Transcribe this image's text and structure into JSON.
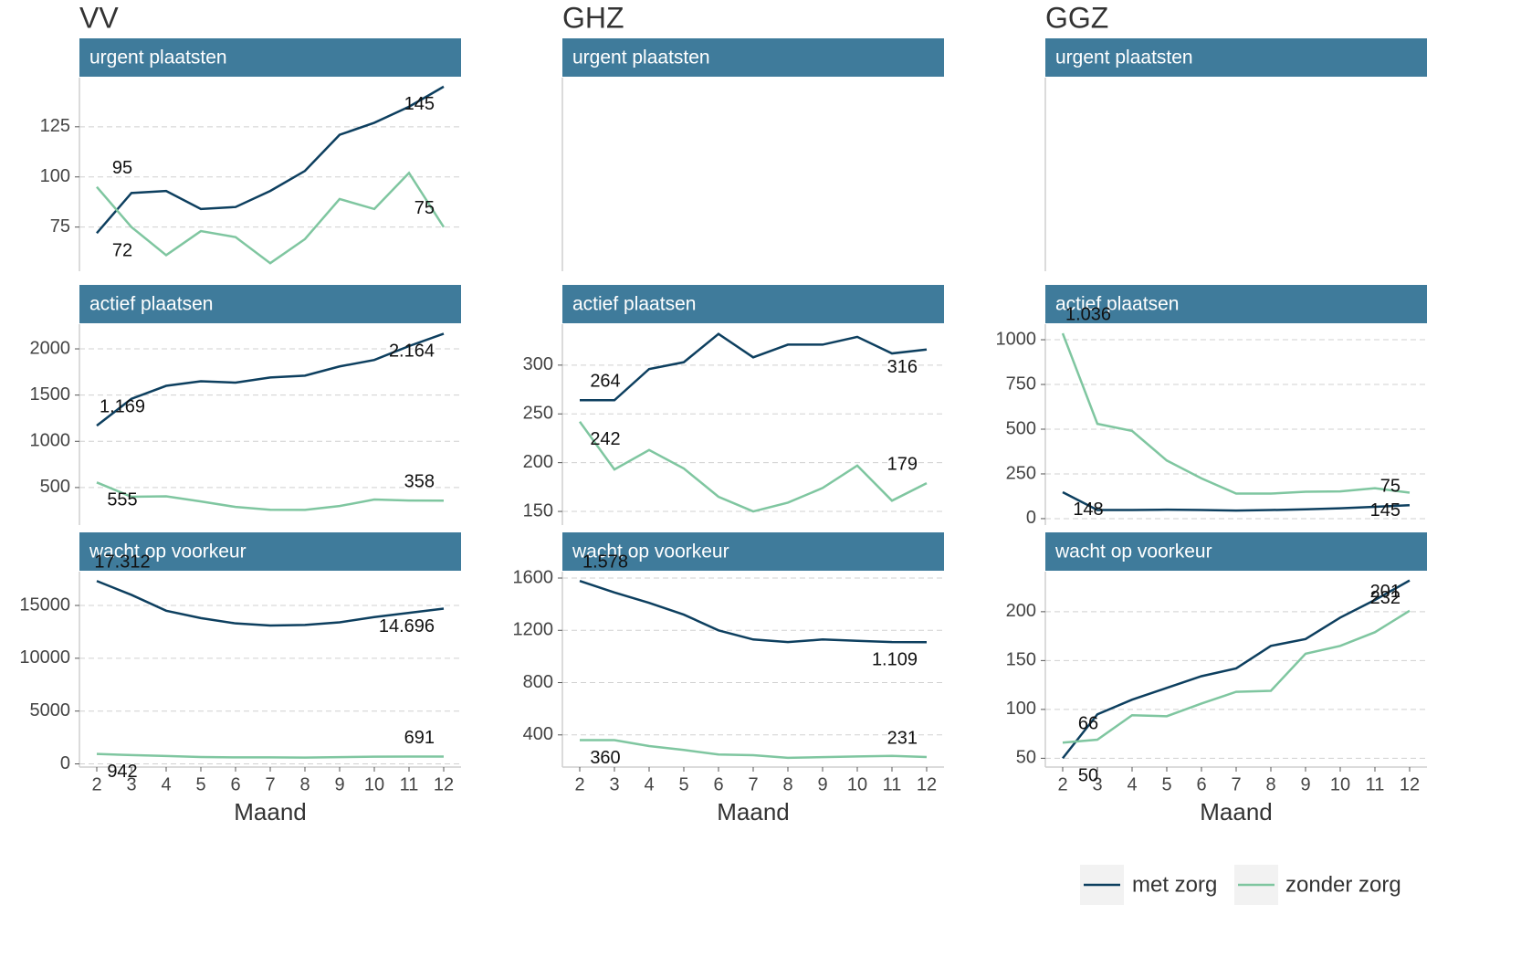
{
  "chart_data": [
    {
      "type": "line",
      "title": "VV",
      "subtitle": "urgent plaatsten",
      "x": [
        2,
        3,
        4,
        5,
        6,
        7,
        8,
        9,
        10,
        11,
        12
      ],
      "xlim": [
        1.5,
        12.5
      ],
      "ylim": [
        53,
        149.5
      ],
      "yticks": [
        75,
        100,
        125
      ],
      "grid": true,
      "series": [
        {
          "name": "met zorg",
          "color": "#0d3f5f",
          "values": [
            72,
            92,
            93,
            84,
            85,
            93,
            103,
            121,
            127,
            135,
            145
          ],
          "value_labels": [
            "72",
            null,
            null,
            null,
            null,
            null,
            null,
            null,
            null,
            null,
            "145"
          ]
        },
        {
          "name": "zonder zorg",
          "color": "#7fc6a0",
          "values": [
            95,
            75,
            61,
            73,
            70,
            57,
            69,
            89,
            84,
            102,
            75
          ],
          "value_labels": [
            "95",
            null,
            null,
            null,
            null,
            null,
            null,
            null,
            null,
            null,
            "75"
          ]
        }
      ]
    },
    {
      "type": "line",
      "subtitle": "actief plaatsen",
      "x": [
        2,
        3,
        4,
        5,
        6,
        7,
        8,
        9,
        10,
        11,
        12
      ],
      "xlim": [
        1.5,
        12.5
      ],
      "ylim": [
        94,
        2267
      ],
      "yticks": [
        500,
        1000,
        1500,
        2000
      ],
      "grid": true,
      "series": [
        {
          "color": "#0d3f5f",
          "values": [
            1169,
            1460,
            1600,
            1650,
            1635,
            1690,
            1710,
            1810,
            1880,
            2030,
            2164
          ],
          "value_labels": [
            "1.169",
            null,
            null,
            null,
            null,
            null,
            null,
            null,
            null,
            null,
            "2.164"
          ]
        },
        {
          "color": "#7fc6a0",
          "values": [
            555,
            400,
            405,
            350,
            290,
            260,
            258,
            300,
            370,
            360,
            358
          ],
          "value_labels": [
            "555",
            null,
            null,
            null,
            null,
            null,
            null,
            null,
            null,
            null,
            "358"
          ]
        }
      ]
    },
    {
      "type": "line",
      "subtitle": "wacht op voorkeur",
      "xlabel": "Maand",
      "x": [
        2,
        3,
        4,
        5,
        6,
        7,
        8,
        9,
        10,
        11,
        12
      ],
      "xlim": [
        1.5,
        12.5
      ],
      "xticks": [
        2,
        3,
        4,
        5,
        6,
        7,
        8,
        9,
        10,
        11,
        12
      ],
      "ylim": [
        -300,
        18200
      ],
      "yticks": [
        0,
        5000,
        10000,
        15000
      ],
      "grid": true,
      "series": [
        {
          "color": "#0d3f5f",
          "values": [
            17312,
            16000,
            14500,
            13800,
            13300,
            13100,
            13150,
            13400,
            13900,
            14300,
            14696
          ],
          "value_labels": [
            "17.312",
            null,
            null,
            null,
            null,
            null,
            null,
            null,
            null,
            null,
            "14.696"
          ]
        },
        {
          "color": "#7fc6a0",
          "values": [
            942,
            830,
            750,
            650,
            620,
            620,
            600,
            640,
            680,
            690,
            691
          ],
          "value_labels": [
            "942",
            null,
            null,
            null,
            null,
            null,
            null,
            null,
            null,
            null,
            "691"
          ]
        }
      ]
    },
    {
      "type": "line",
      "title": "GHZ",
      "subtitle": "urgent plaatsten"
    },
    {
      "type": "line",
      "subtitle": "actief plaatsen",
      "x": [
        2,
        3,
        4,
        5,
        6,
        7,
        8,
        9,
        10,
        11,
        12
      ],
      "xlim": [
        1.5,
        12.5
      ],
      "ylim": [
        136,
        342
      ],
      "yticks": [
        150,
        200,
        250,
        300
      ],
      "grid": true,
      "series": [
        {
          "color": "#0d3f5f",
          "values": [
            264,
            264,
            296,
            303,
            332,
            308,
            321,
            321,
            329,
            312,
            316
          ],
          "value_labels": [
            "264",
            null,
            null,
            null,
            null,
            null,
            null,
            null,
            null,
            null,
            "316"
          ]
        },
        {
          "color": "#7fc6a0",
          "values": [
            242,
            193,
            213,
            194,
            165,
            150,
            159,
            174,
            197,
            161,
            179
          ],
          "value_labels": [
            "242",
            null,
            null,
            null,
            null,
            null,
            null,
            null,
            null,
            null,
            "179"
          ]
        }
      ]
    },
    {
      "type": "line",
      "subtitle": "wacht op voorkeur",
      "xlabel": "Maand",
      "x": [
        2,
        3,
        4,
        5,
        6,
        7,
        8,
        9,
        10,
        11,
        12
      ],
      "xlim": [
        1.5,
        12.5
      ],
      "xticks": [
        2,
        3,
        4,
        5,
        6,
        7,
        8,
        9,
        10,
        11,
        12
      ],
      "ylim": [
        154,
        1649
      ],
      "yticks": [
        400,
        800,
        1200,
        1600
      ],
      "grid": true,
      "series": [
        {
          "color": "#0d3f5f",
          "values": [
            1578,
            1490,
            1410,
            1320,
            1200,
            1130,
            1110,
            1130,
            1120,
            1110,
            1109
          ],
          "value_labels": [
            "1.578",
            null,
            null,
            null,
            null,
            null,
            null,
            null,
            null,
            null,
            "1.109"
          ]
        },
        {
          "color": "#7fc6a0",
          "values": [
            360,
            360,
            315,
            285,
            250,
            245,
            225,
            230,
            235,
            240,
            231
          ],
          "value_labels": [
            "360",
            null,
            null,
            null,
            null,
            null,
            null,
            null,
            null,
            null,
            "231"
          ]
        }
      ]
    },
    {
      "type": "line",
      "title": "GGZ",
      "subtitle": "urgent plaatsten"
    },
    {
      "type": "line",
      "subtitle": "actief plaatsen",
      "x": [
        2,
        3,
        4,
        5,
        6,
        7,
        8,
        9,
        10,
        11,
        12
      ],
      "xlim": [
        1.5,
        12.5
      ],
      "ylim": [
        -36,
        1087
      ],
      "yticks": [
        0,
        250,
        500,
        750,
        {
          "value": 1000,
          "label": "1000"
        }
      ],
      "grid": true,
      "series": [
        {
          "color": "#0d3f5f",
          "values": [
            148,
            48,
            48,
            50,
            48,
            45,
            48,
            52,
            58,
            66,
            75
          ],
          "value_labels": [
            "148",
            null,
            null,
            null,
            null,
            null,
            null,
            null,
            null,
            null,
            "75"
          ]
        },
        {
          "color": "#7fc6a0",
          "values": [
            1036,
            530,
            490,
            325,
            225,
            140,
            140,
            150,
            152,
            170,
            145
          ],
          "value_labels": [
            "1.036",
            null,
            null,
            null,
            null,
            null,
            null,
            null,
            null,
            null,
            "145"
          ]
        }
      ]
    },
    {
      "type": "line",
      "subtitle": "wacht op voorkeur",
      "xlabel": "Maand",
      "x": [
        2,
        3,
        4,
        5,
        6,
        7,
        8,
        9,
        10,
        11,
        12
      ],
      "xlim": [
        1.5,
        12.5
      ],
      "xticks": [
        2,
        3,
        4,
        5,
        6,
        7,
        8,
        9,
        10,
        11,
        12
      ],
      "ylim": [
        41,
        241
      ],
      "yticks": [
        50,
        100,
        150,
        200
      ],
      "grid": true,
      "series": [
        {
          "color": "#0d3f5f",
          "values": [
            50,
            95,
            110,
            122,
            134,
            142,
            165,
            172,
            194,
            212,
            232
          ],
          "value_labels": [
            "50",
            null,
            null,
            null,
            null,
            null,
            null,
            null,
            null,
            null,
            "232"
          ]
        },
        {
          "color": "#7fc6a0",
          "values": [
            66,
            69,
            94,
            93,
            106,
            118,
            119,
            157,
            165,
            179,
            201
          ],
          "value_labels": [
            "66",
            null,
            null,
            null,
            null,
            null,
            null,
            null,
            null,
            null,
            "201"
          ]
        }
      ]
    }
  ]
}
